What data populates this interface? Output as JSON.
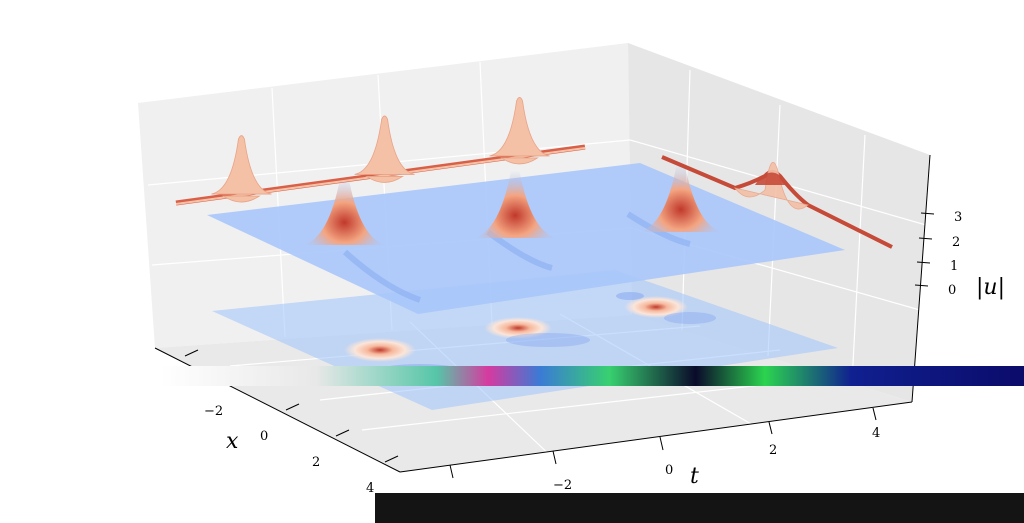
{
  "chart_data": {
    "type": "surface3d",
    "xlabel": "x",
    "ylabel": "t",
    "zlabel": "|u|",
    "x_ticks": [
      "−2",
      "0",
      "2",
      "4"
    ],
    "t_ticks": [
      "−2",
      "0",
      "2",
      "4"
    ],
    "z_ticks": [
      "0",
      "1",
      "2",
      "3"
    ],
    "x_range": [
      -4,
      4
    ],
    "t_range": [
      -4,
      5
    ],
    "z_range": [
      0,
      3.5
    ],
    "peaks": [
      {
        "t": -2.5,
        "x": -1.2,
        "amplitude": 3.0
      },
      {
        "t": 0.2,
        "x": -0.4,
        "amplitude": 3.0
      },
      {
        "t": 2.8,
        "x": 0.4,
        "amplitude": 3.0
      }
    ],
    "colormap": "coolwarm",
    "grid": true,
    "colors": {
      "surface_low": "#9fc2fb",
      "surface_high": "#c64a38",
      "projection_wall": "#f2c2a8",
      "pane": "#f0f0f0"
    }
  }
}
